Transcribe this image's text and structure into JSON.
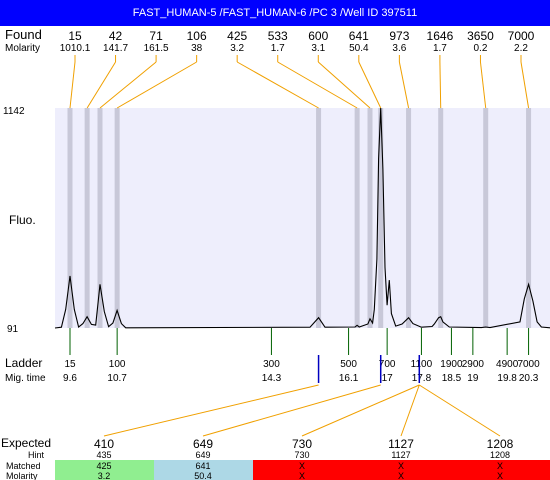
{
  "title": "FAST_HUMAN-5 /FAST_HUMAN-6 /PC 3 /Well ID 397511",
  "labels": {
    "found": "Found",
    "molarity": "Molarity",
    "fluo": "Fluo.",
    "ladder": "Ladder",
    "mig_time": "Mig. time",
    "expected": "Expected",
    "hint": "Hint",
    "matched": "Matched",
    "molarity_row": "Molarity"
  },
  "colors": {
    "title_bg": "#0000ff",
    "plot_bg": "#eeeefc",
    "band": "#c8c8d8",
    "found_line": "#f0a000",
    "ladder_line": "#006000",
    "blue_marker": "#0000c0",
    "matched_green": "#90ee90",
    "matched_blue": "#add8e6",
    "matched_red": "#ff0000"
  },
  "chart_data": {
    "type": "line",
    "ylabel": "Fluo.",
    "y_ticks": [
      "1142",
      "91"
    ],
    "ylim": [
      91,
      1142
    ],
    "xlim": [
      9.25,
      20.8
    ],
    "found_peaks": [
      {
        "size": "15",
        "molarity": "1010.1",
        "time": 9.6
      },
      {
        "size": "42",
        "molarity": "141.7",
        "time": 10.0
      },
      {
        "size": "71",
        "molarity": "161.5",
        "time": 10.3
      },
      {
        "size": "106",
        "molarity": "38",
        "time": 10.7
      },
      {
        "size": "425",
        "molarity": "3.2",
        "time": 15.4
      },
      {
        "size": "533",
        "molarity": "1.7",
        "time": 16.3
      },
      {
        "size": "600",
        "molarity": "3.1",
        "time": 16.6
      },
      {
        "size": "641",
        "molarity": "50.4",
        "time": 16.85
      },
      {
        "size": "973",
        "molarity": "3.6",
        "time": 17.5
      },
      {
        "size": "1646",
        "molarity": "1.7",
        "time": 18.25
      },
      {
        "size": "3650",
        "molarity": "0.2",
        "time": 19.3
      },
      {
        "size": "7000",
        "molarity": "2.2",
        "time": 20.3
      }
    ],
    "ladder": [
      {
        "size": "15",
        "time": "9.6",
        "t": 9.6
      },
      {
        "size": "100",
        "time": "10.7",
        "t": 10.7
      },
      {
        "size": "300",
        "time": "14.3",
        "t": 14.3
      },
      {
        "size": "500",
        "time": "16.1",
        "t": 16.1
      },
      {
        "size": "700",
        "time": "17",
        "t": 17.0
      },
      {
        "size": "1100",
        "time": "17.8",
        "t": 17.8
      },
      {
        "size": "1900",
        "time": "18.5",
        "t": 18.5
      },
      {
        "size": "2900",
        "time": "19",
        "t": 19.0
      },
      {
        "size": "4900",
        "time": "19.8",
        "t": 19.8
      },
      {
        "size": "7000",
        "time": "20.3",
        "t": 20.3
      }
    ],
    "blue_markers": [
      15.4,
      16.85,
      17.75
    ],
    "expected": [
      {
        "expected": "410",
        "hint": "435",
        "matched": "425",
        "molarity": "3.2",
        "color": "#90ee90",
        "time": 15.4
      },
      {
        "expected": "649",
        "hint": "649",
        "matched": "641",
        "molarity": "50.4",
        "color": "#add8e6",
        "time": 16.85
      },
      {
        "expected": "730",
        "hint": "730",
        "matched": "X",
        "molarity": "X",
        "color": "#ff0000",
        "time": 17.75
      },
      {
        "expected": "1127",
        "hint": "1127",
        "matched": "X",
        "molarity": "X",
        "color": "#ff0000",
        "time": 17.75
      },
      {
        "expected": "1208",
        "hint": "1208",
        "matched": "X",
        "molarity": "X",
        "color": "#ff0000",
        "time": 17.75
      }
    ],
    "trace": [
      [
        9.25,
        91
      ],
      [
        9.4,
        95
      ],
      [
        9.5,
        180
      ],
      [
        9.6,
        340
      ],
      [
        9.7,
        180
      ],
      [
        9.8,
        96
      ],
      [
        9.9,
        112
      ],
      [
        10.0,
        145
      ],
      [
        10.1,
        108
      ],
      [
        10.2,
        105
      ],
      [
        10.3,
        300
      ],
      [
        10.4,
        170
      ],
      [
        10.5,
        97
      ],
      [
        10.6,
        115
      ],
      [
        10.7,
        175
      ],
      [
        10.8,
        112
      ],
      [
        10.9,
        92
      ],
      [
        15.2,
        95
      ],
      [
        15.4,
        140
      ],
      [
        15.55,
        95
      ],
      [
        16.25,
        96
      ],
      [
        16.3,
        104
      ],
      [
        16.35,
        96
      ],
      [
        16.55,
        110
      ],
      [
        16.6,
        135
      ],
      [
        16.66,
        115
      ],
      [
        16.7,
        180
      ],
      [
        16.76,
        420
      ],
      [
        16.8,
        900
      ],
      [
        16.85,
        1142
      ],
      [
        16.9,
        850
      ],
      [
        16.95,
        380
      ],
      [
        17.0,
        200
      ],
      [
        17.05,
        320
      ],
      [
        17.1,
        160
      ],
      [
        17.2,
        100
      ],
      [
        17.35,
        110
      ],
      [
        17.5,
        140
      ],
      [
        17.6,
        112
      ],
      [
        17.8,
        95
      ],
      [
        18.05,
        98
      ],
      [
        18.1,
        110
      ],
      [
        18.2,
        140
      ],
      [
        18.25,
        145
      ],
      [
        18.3,
        120
      ],
      [
        18.45,
        96
      ],
      [
        19.2,
        93
      ],
      [
        19.3,
        96
      ],
      [
        19.4,
        93
      ],
      [
        20.1,
        120
      ],
      [
        20.2,
        230
      ],
      [
        20.3,
        300
      ],
      [
        20.4,
        220
      ],
      [
        20.5,
        120
      ],
      [
        20.6,
        96
      ],
      [
        20.8,
        92
      ]
    ]
  }
}
